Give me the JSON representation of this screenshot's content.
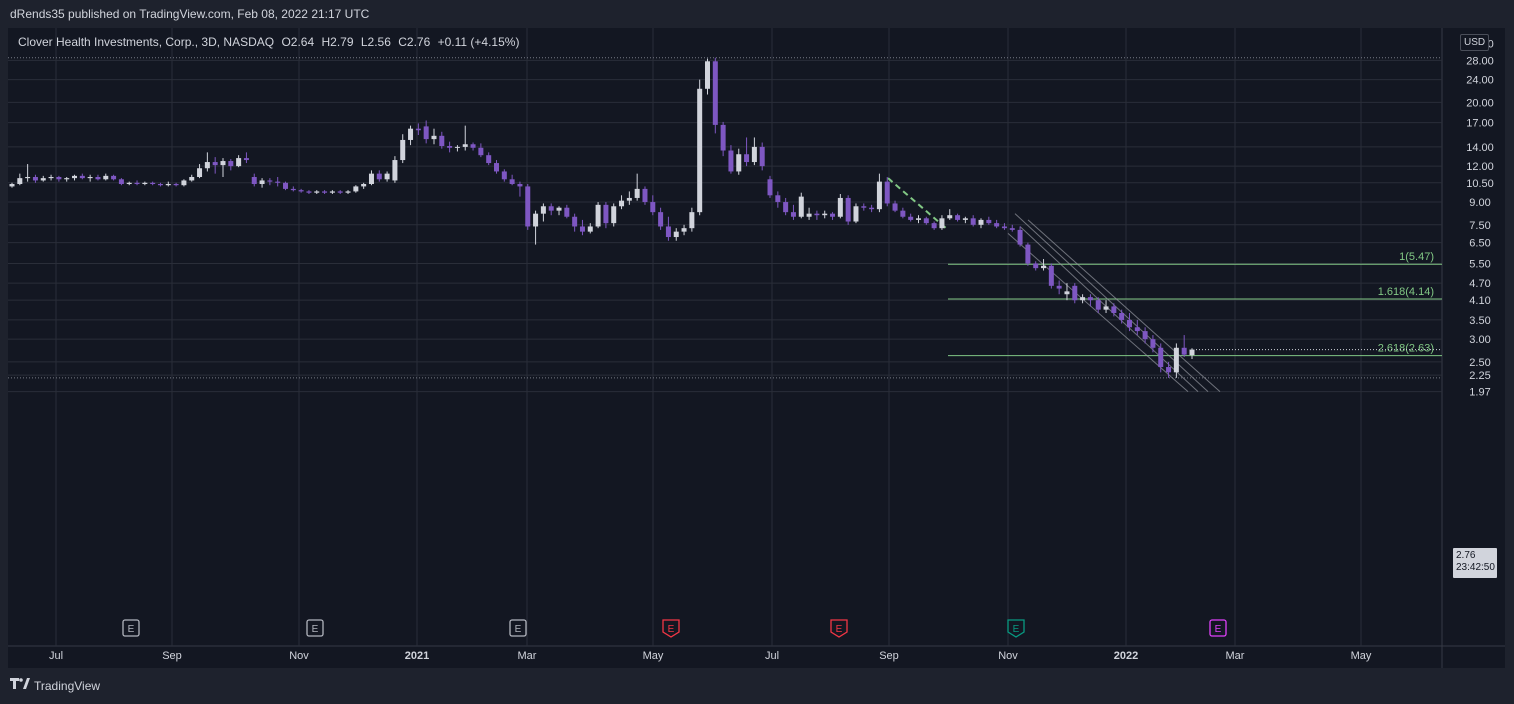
{
  "publisher": "dRends35 published on TradingView.com, Feb 08, 2022 21:17 UTC",
  "legend": {
    "symbol": "Clover Health Investments, Corp., 3D, NASDAQ",
    "open": "O2.64",
    "high": "H2.79",
    "low": "L2.56",
    "close": "C2.76",
    "change": "+0.11 (+4.15%)"
  },
  "currency": "USD",
  "last_price": {
    "value": "2.76",
    "countdown": "23:42:50"
  },
  "footer": {
    "brand": "TradingView"
  },
  "colors": {
    "background": "#131722",
    "grid": "#2a2e39",
    "bull": "#d1d4dc",
    "bear": "#7e57c2",
    "fib": "#81c784",
    "channel": "#9598a1",
    "earnings_neutral": "#b2b5be",
    "earnings_miss": "#f23645",
    "earnings_beat": "#089981",
    "earnings_upcoming": "#e040fb"
  },
  "chart_data": {
    "type": "candlestick",
    "x_tick_labels": [
      "Jul",
      "Sep",
      "Nov",
      "2021",
      "Mar",
      "May",
      "Jul",
      "Sep",
      "Nov",
      "2022",
      "Mar",
      "May"
    ],
    "y_tick_labels": [
      "32.00",
      "28.00",
      "24.00",
      "20.00",
      "17.00",
      "14.00",
      "12.00",
      "10.50",
      "9.00",
      "7.50",
      "6.50",
      "5.50",
      "4.70",
      "4.10",
      "3.50",
      "3.00",
      "2.50",
      "2.25",
      "1.97"
    ],
    "y_scale": "log",
    "ylim": [
      1.97,
      32
    ],
    "fib_levels": [
      {
        "label": "1(5.47)",
        "price": 5.47
      },
      {
        "label": "1.618(4.14)",
        "price": 4.14
      },
      {
        "label": "2.618(2.63)",
        "price": 2.63
      }
    ],
    "earnings_markers": [
      {
        "label": "E",
        "type": "neutral"
      },
      {
        "label": "E",
        "type": "neutral"
      },
      {
        "label": "E",
        "type": "neutral"
      },
      {
        "label": "E",
        "type": "miss"
      },
      {
        "label": "E",
        "type": "miss"
      },
      {
        "label": "E",
        "type": "beat"
      },
      {
        "label": "E",
        "type": "upcoming"
      }
    ],
    "candles": [
      [
        10.2,
        10.5,
        10.1,
        10.4
      ],
      [
        10.4,
        11.3,
        10.3,
        10.9
      ],
      [
        10.9,
        12.2,
        10.6,
        11.0
      ],
      [
        11.0,
        11.2,
        10.5,
        10.7
      ],
      [
        10.7,
        11.1,
        10.6,
        10.9
      ],
      [
        10.9,
        11.2,
        10.7,
        11.0
      ],
      [
        11.0,
        11.1,
        10.6,
        10.8
      ],
      [
        10.8,
        11.0,
        10.6,
        10.9
      ],
      [
        10.9,
        11.2,
        10.7,
        11.1
      ],
      [
        11.1,
        11.3,
        10.8,
        10.9
      ],
      [
        10.9,
        11.2,
        10.6,
        11.0
      ],
      [
        11.0,
        11.2,
        10.7,
        10.8
      ],
      [
        10.8,
        11.3,
        10.7,
        11.1
      ],
      [
        11.1,
        11.2,
        10.7,
        10.8
      ],
      [
        10.8,
        10.9,
        10.3,
        10.4
      ],
      [
        10.4,
        10.6,
        10.3,
        10.5
      ],
      [
        10.5,
        10.7,
        10.3,
        10.4
      ],
      [
        10.4,
        10.6,
        10.3,
        10.5
      ],
      [
        10.5,
        10.6,
        10.3,
        10.4
      ],
      [
        10.4,
        10.5,
        10.2,
        10.3
      ],
      [
        10.3,
        10.6,
        10.2,
        10.4
      ],
      [
        10.4,
        10.5,
        10.2,
        10.3
      ],
      [
        10.3,
        10.8,
        10.2,
        10.7
      ],
      [
        10.7,
        11.2,
        10.6,
        11.0
      ],
      [
        11.0,
        12.2,
        10.9,
        11.8
      ],
      [
        11.8,
        13.4,
        11.5,
        12.4
      ],
      [
        12.4,
        12.9,
        11.3,
        12.1
      ],
      [
        12.1,
        12.8,
        11.0,
        12.5
      ],
      [
        12.5,
        12.7,
        11.6,
        12.0
      ],
      [
        12.0,
        13.1,
        11.9,
        12.8
      ],
      [
        12.8,
        13.4,
        12.3,
        12.6
      ],
      [
        11.0,
        11.3,
        10.2,
        10.4
      ],
      [
        10.4,
        10.9,
        10.1,
        10.7
      ],
      [
        10.7,
        10.9,
        10.3,
        10.6
      ],
      [
        10.6,
        11.0,
        10.2,
        10.5
      ],
      [
        10.5,
        10.6,
        9.9,
        10.0
      ],
      [
        10.0,
        10.2,
        9.8,
        9.9
      ],
      [
        9.9,
        10.0,
        9.7,
        9.8
      ],
      [
        9.8,
        9.9,
        9.6,
        9.7
      ],
      [
        9.7,
        9.9,
        9.6,
        9.8
      ],
      [
        9.8,
        9.9,
        9.6,
        9.7
      ],
      [
        9.7,
        9.9,
        9.6,
        9.8
      ],
      [
        9.8,
        9.9,
        9.6,
        9.7
      ],
      [
        9.7,
        9.9,
        9.6,
        9.8
      ],
      [
        9.8,
        10.3,
        9.7,
        10.2
      ],
      [
        10.2,
        10.5,
        10.0,
        10.4
      ],
      [
        10.4,
        11.6,
        10.3,
        11.3
      ],
      [
        11.3,
        11.6,
        10.6,
        10.8
      ],
      [
        10.8,
        11.5,
        10.6,
        11.3
      ],
      [
        10.7,
        13.0,
        10.5,
        12.6
      ],
      [
        12.6,
        15.5,
        12.3,
        14.8
      ],
      [
        14.8,
        16.6,
        14.2,
        16.2
      ],
      [
        16.2,
        16.9,
        15.4,
        16.0
      ],
      [
        16.5,
        17.3,
        14.4,
        14.9
      ],
      [
        14.9,
        16.2,
        14.3,
        15.3
      ],
      [
        15.3,
        15.8,
        13.8,
        14.1
      ],
      [
        14.1,
        14.6,
        13.4,
        13.9
      ],
      [
        13.9,
        14.2,
        13.5,
        14.0
      ],
      [
        14.0,
        16.6,
        13.6,
        14.3
      ],
      [
        14.3,
        14.5,
        13.6,
        13.9
      ],
      [
        13.9,
        14.4,
        12.9,
        13.1
      ],
      [
        13.1,
        13.4,
        12.1,
        12.3
      ],
      [
        12.3,
        12.6,
        11.3,
        11.5
      ],
      [
        11.5,
        11.7,
        10.6,
        10.8
      ],
      [
        10.8,
        11.2,
        10.3,
        10.4
      ],
      [
        10.4,
        10.6,
        9.4,
        10.2
      ],
      [
        10.2,
        10.4,
        7.2,
        7.4
      ],
      [
        7.4,
        8.4,
        6.4,
        8.2
      ],
      [
        8.2,
        8.9,
        7.7,
        8.7
      ],
      [
        8.7,
        8.9,
        8.1,
        8.4
      ],
      [
        8.4,
        8.7,
        8.1,
        8.6
      ],
      [
        8.6,
        8.8,
        7.9,
        8.0
      ],
      [
        8.0,
        8.2,
        7.1,
        7.4
      ],
      [
        7.4,
        7.8,
        6.9,
        7.1
      ],
      [
        7.1,
        7.6,
        7.0,
        7.4
      ],
      [
        7.4,
        9.0,
        7.3,
        8.8
      ],
      [
        8.8,
        9.0,
        7.3,
        7.6
      ],
      [
        7.6,
        8.9,
        7.4,
        8.7
      ],
      [
        8.7,
        9.5,
        8.5,
        9.1
      ],
      [
        9.1,
        9.8,
        8.8,
        9.3
      ],
      [
        9.3,
        11.3,
        9.1,
        10.0
      ],
      [
        10.0,
        10.2,
        8.8,
        9.0
      ],
      [
        9.0,
        9.5,
        8.1,
        8.3
      ],
      [
        8.3,
        8.6,
        7.2,
        7.4
      ],
      [
        7.4,
        8.0,
        6.6,
        6.8
      ],
      [
        6.8,
        7.3,
        6.6,
        7.1
      ],
      [
        7.1,
        7.5,
        6.9,
        7.3
      ],
      [
        7.3,
        8.6,
        7.1,
        8.3
      ],
      [
        8.3,
        24.0,
        8.1,
        22.3
      ],
      [
        22.3,
        28.4,
        21.3,
        27.8
      ],
      [
        27.8,
        28.6,
        15.6,
        16.7
      ],
      [
        16.7,
        17.1,
        13.0,
        13.6
      ],
      [
        13.6,
        14.2,
        11.3,
        11.5
      ],
      [
        11.5,
        13.8,
        11.2,
        13.2
      ],
      [
        13.2,
        15.1,
        12.0,
        12.4
      ],
      [
        12.4,
        15.1,
        12.1,
        14.0
      ],
      [
        14.0,
        14.5,
        11.6,
        12.0
      ],
      [
        10.8,
        11.1,
        9.3,
        9.5
      ],
      [
        9.5,
        9.8,
        8.6,
        9.0
      ],
      [
        9.0,
        9.3,
        8.1,
        8.3
      ],
      [
        8.3,
        8.8,
        7.8,
        8.0
      ],
      [
        8.0,
        9.7,
        7.9,
        9.4
      ],
      [
        8.0,
        8.6,
        7.8,
        8.2
      ],
      [
        8.2,
        8.4,
        7.8,
        8.1
      ],
      [
        8.1,
        8.4,
        7.9,
        8.2
      ],
      [
        8.2,
        8.3,
        7.8,
        8.0
      ],
      [
        8.0,
        9.6,
        7.9,
        9.3
      ],
      [
        9.3,
        9.5,
        7.5,
        7.7
      ],
      [
        7.7,
        8.9,
        7.6,
        8.7
      ],
      [
        8.7,
        8.9,
        8.4,
        8.6
      ],
      [
        8.6,
        8.8,
        8.3,
        8.5
      ],
      [
        8.5,
        11.3,
        8.3,
        10.6
      ],
      [
        10.6,
        11.0,
        8.7,
        8.9
      ],
      [
        8.9,
        9.1,
        8.3,
        8.4
      ],
      [
        8.4,
        8.6,
        7.9,
        8.0
      ],
      [
        8.0,
        8.2,
        7.7,
        7.8
      ],
      [
        7.8,
        8.1,
        7.6,
        7.9
      ],
      [
        7.9,
        8.0,
        7.5,
        7.6
      ],
      [
        7.6,
        7.7,
        7.2,
        7.3
      ],
      [
        7.3,
        8.1,
        7.2,
        7.9
      ],
      [
        7.9,
        8.5,
        7.8,
        8.1
      ],
      [
        8.1,
        8.2,
        7.7,
        7.8
      ],
      [
        7.8,
        8.0,
        7.6,
        7.9
      ],
      [
        7.9,
        8.1,
        7.4,
        7.5
      ],
      [
        7.5,
        7.9,
        7.3,
        7.8
      ],
      [
        7.8,
        8.0,
        7.5,
        7.6
      ],
      [
        7.6,
        7.8,
        7.3,
        7.4
      ],
      [
        7.4,
        7.6,
        7.2,
        7.3
      ],
      [
        7.3,
        7.5,
        7.1,
        7.2
      ],
      [
        7.2,
        7.4,
        6.3,
        6.4
      ],
      [
        6.4,
        6.5,
        5.4,
        5.5
      ],
      [
        5.5,
        5.6,
        5.2,
        5.3
      ],
      [
        5.3,
        5.7,
        5.2,
        5.4
      ],
      [
        5.4,
        5.5,
        4.5,
        4.6
      ],
      [
        4.6,
        4.8,
        4.3,
        4.5
      ],
      [
        4.3,
        4.7,
        4.1,
        4.4
      ],
      [
        4.6,
        4.7,
        4.0,
        4.1
      ],
      [
        4.1,
        4.3,
        4.0,
        4.2
      ],
      [
        4.2,
        4.3,
        3.9,
        4.1
      ],
      [
        4.1,
        4.2,
        3.7,
        3.8
      ],
      [
        3.8,
        4.1,
        3.7,
        3.9
      ],
      [
        3.9,
        4.0,
        3.6,
        3.7
      ],
      [
        3.7,
        3.8,
        3.4,
        3.5
      ],
      [
        3.5,
        3.7,
        3.2,
        3.3
      ],
      [
        3.3,
        3.5,
        3.1,
        3.2
      ],
      [
        3.2,
        3.3,
        2.9,
        3.0
      ],
      [
        3.0,
        3.1,
        2.7,
        2.8
      ],
      [
        2.8,
        2.9,
        2.3,
        2.4
      ],
      [
        2.4,
        2.5,
        2.2,
        2.3
      ],
      [
        2.3,
        2.9,
        2.2,
        2.8
      ],
      [
        2.8,
        3.1,
        2.6,
        2.65
      ],
      [
        2.64,
        2.79,
        2.56,
        2.76
      ]
    ]
  }
}
